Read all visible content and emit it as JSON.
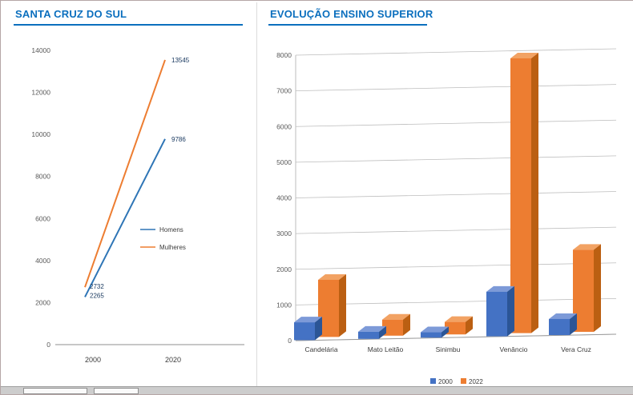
{
  "theme": {
    "accent_blue": "#0b6fbe",
    "axis_text": "#595959",
    "label_text": "#3b3b3b",
    "grid": "#bdbdbd",
    "data_label": "#17375e",
    "line_blue": "#2E75B6",
    "line_orange": "#ED7D31",
    "bar_blue": "#4472C4",
    "bar_orange": "#ED7D31"
  },
  "chart_data": [
    {
      "type": "line",
      "title": "SANTA CRUZ DO SUL",
      "x": [
        "2000",
        "2020"
      ],
      "series": [
        {
          "name": "Homens",
          "values": [
            2265,
            9786
          ],
          "color": "#2E75B6"
        },
        {
          "name": "Mulheres",
          "values": [
            2732,
            13545
          ],
          "color": "#ED7D31"
        }
      ],
      "ylim": [
        0,
        14000
      ],
      "ytick_step": 2000,
      "yticks": [
        0,
        2000,
        4000,
        6000,
        8000,
        10000,
        12000,
        14000
      ],
      "data_labels": [
        2732,
        2265,
        13545,
        9786
      ],
      "legend_position": "center-right",
      "grid": false
    },
    {
      "type": "bar",
      "style": "3d-clustered-column",
      "title": "EVOLUÇÃO ENSINO SUPERIOR",
      "categories": [
        "Candelária",
        "Mato Leitão",
        "Sinimbu",
        "Venâncio",
        "Vera Cruz"
      ],
      "series": [
        {
          "name": "2000",
          "values": [
            500,
            200,
            150,
            1250,
            450
          ],
          "color": "#4472C4"
        },
        {
          "name": "2022",
          "values": [
            1600,
            450,
            350,
            7700,
            2300
          ],
          "color": "#ED7D31"
        }
      ],
      "ylim": [
        0,
        8000
      ],
      "ytick_step": 1000,
      "yticks": [
        0,
        1000,
        2000,
        3000,
        4000,
        5000,
        6000,
        7000,
        8000
      ],
      "legend_position": "bottom",
      "grid": true
    }
  ]
}
